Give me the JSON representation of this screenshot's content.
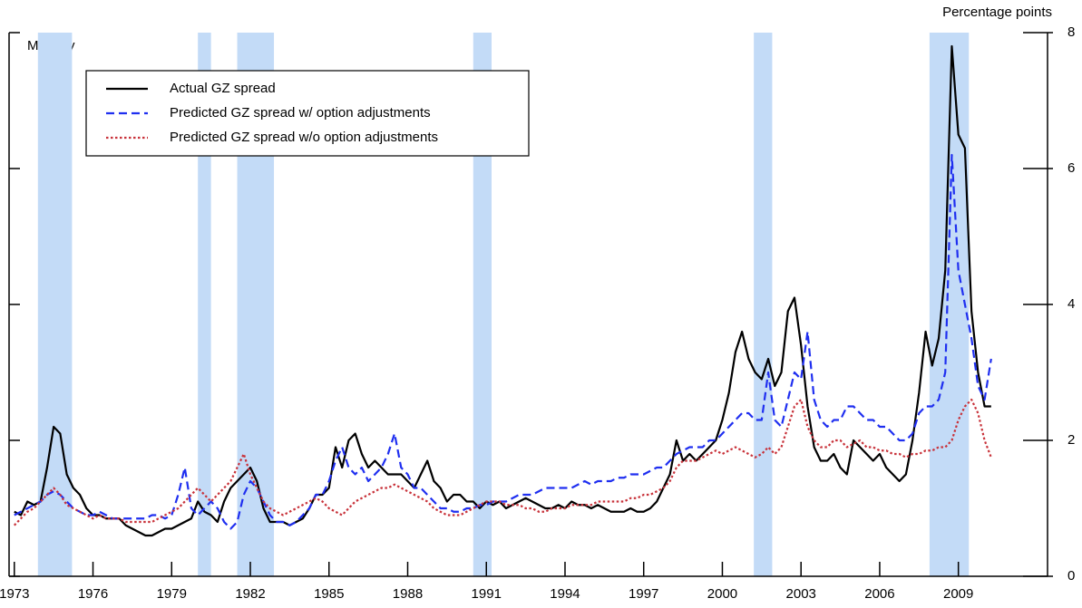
{
  "chart_data": {
    "type": "line",
    "y_axis_label": "Percentage points",
    "annotation": "Monthly",
    "xlim": [
      1972.8,
      2012.4
    ],
    "ylim": [
      0,
      8
    ],
    "xticks": [
      1973,
      1976,
      1979,
      1982,
      1985,
      1988,
      1991,
      1994,
      1997,
      2000,
      2003,
      2006,
      2009
    ],
    "yticks": [
      0,
      2,
      4,
      6,
      8
    ],
    "shade_color": "#c3dbf7",
    "shaded_periods": [
      [
        1973.9,
        1975.2
      ],
      [
        1980.0,
        1980.5
      ],
      [
        1981.5,
        1982.9
      ],
      [
        1990.5,
        1991.2
      ],
      [
        2001.2,
        2001.9
      ],
      [
        2007.9,
        2009.4
      ]
    ],
    "x": [
      1973,
      1973.25,
      1973.5,
      1973.75,
      1974,
      1974.25,
      1974.5,
      1974.75,
      1975,
      1975.25,
      1975.5,
      1975.75,
      1976,
      1976.25,
      1976.5,
      1976.75,
      1977,
      1977.25,
      1977.5,
      1977.75,
      1978,
      1978.25,
      1978.5,
      1978.75,
      1979,
      1979.25,
      1979.5,
      1979.75,
      1980,
      1980.25,
      1980.5,
      1980.75,
      1981,
      1981.25,
      1981.5,
      1981.75,
      1982,
      1982.25,
      1982.5,
      1982.75,
      1983,
      1983.25,
      1983.5,
      1983.75,
      1984,
      1984.25,
      1984.5,
      1984.75,
      1985,
      1985.25,
      1985.5,
      1985.75,
      1986,
      1986.25,
      1986.5,
      1986.75,
      1987,
      1987.25,
      1987.5,
      1987.75,
      1988,
      1988.25,
      1988.5,
      1988.75,
      1989,
      1989.25,
      1989.5,
      1989.75,
      1990,
      1990.25,
      1990.5,
      1990.75,
      1991,
      1991.25,
      1991.5,
      1991.75,
      1992,
      1992.25,
      1992.5,
      1992.75,
      1993,
      1993.25,
      1993.5,
      1993.75,
      1994,
      1994.25,
      1994.5,
      1994.75,
      1995,
      1995.25,
      1995.5,
      1995.75,
      1996,
      1996.25,
      1996.5,
      1996.75,
      1997,
      1997.25,
      1997.5,
      1997.75,
      1998,
      1998.25,
      1998.5,
      1998.75,
      1999,
      1999.25,
      1999.5,
      1999.75,
      2000,
      2000.25,
      2000.5,
      2000.75,
      2001,
      2001.25,
      2001.5,
      2001.75,
      2002,
      2002.25,
      2002.5,
      2002.75,
      2003,
      2003.25,
      2003.5,
      2003.75,
      2004,
      2004.25,
      2004.5,
      2004.75,
      2005,
      2005.25,
      2005.5,
      2005.75,
      2006,
      2006.25,
      2006.5,
      2006.75,
      2007,
      2007.25,
      2007.5,
      2007.75,
      2008,
      2008.25,
      2008.5,
      2008.75,
      2009,
      2009.25,
      2009.5,
      2009.75,
      2010,
      2010.25
    ],
    "series": [
      {
        "name": "Actual GZ spread",
        "color": "#000000",
        "style": "solid",
        "values": [
          0.95,
          0.9,
          1.1,
          1.05,
          1.1,
          1.6,
          2.2,
          2.1,
          1.5,
          1.3,
          1.2,
          1.0,
          0.9,
          0.9,
          0.85,
          0.85,
          0.85,
          0.75,
          0.7,
          0.65,
          0.6,
          0.6,
          0.65,
          0.7,
          0.7,
          0.75,
          0.8,
          0.85,
          1.1,
          0.95,
          0.9,
          0.8,
          1.1,
          1.3,
          1.4,
          1.5,
          1.6,
          1.4,
          1.0,
          0.8,
          0.8,
          0.8,
          0.75,
          0.8,
          0.85,
          1.0,
          1.2,
          1.2,
          1.3,
          1.9,
          1.6,
          2.0,
          2.1,
          1.8,
          1.6,
          1.7,
          1.6,
          1.5,
          1.5,
          1.5,
          1.4,
          1.3,
          1.5,
          1.7,
          1.4,
          1.3,
          1.1,
          1.2,
          1.2,
          1.1,
          1.1,
          1.0,
          1.1,
          1.05,
          1.1,
          1.0,
          1.05,
          1.1,
          1.15,
          1.1,
          1.05,
          1.0,
          1.0,
          1.05,
          1.0,
          1.1,
          1.05,
          1.05,
          1.0,
          1.05,
          1.0,
          0.95,
          0.95,
          0.95,
          1.0,
          0.95,
          0.95,
          1.0,
          1.1,
          1.3,
          1.5,
          2.0,
          1.7,
          1.8,
          1.7,
          1.8,
          1.9,
          2.0,
          2.3,
          2.7,
          3.3,
          3.6,
          3.2,
          3.0,
          2.9,
          3.2,
          2.8,
          3.0,
          3.9,
          4.1,
          3.4,
          2.5,
          1.9,
          1.7,
          1.7,
          1.8,
          1.6,
          1.5,
          2.0,
          1.9,
          1.8,
          1.7,
          1.8,
          1.6,
          1.5,
          1.4,
          1.5,
          2.0,
          2.7,
          3.6,
          3.1,
          3.5,
          4.5,
          7.8,
          6.5,
          6.3,
          3.9,
          3.0,
          2.5,
          2.5
        ]
      },
      {
        "name": "Predicted GZ spread w/ option adjustments",
        "color": "#1f2ff0",
        "style": "dashed",
        "values": [
          0.9,
          0.95,
          1.0,
          1.05,
          1.1,
          1.2,
          1.25,
          1.2,
          1.1,
          1.0,
          0.95,
          0.9,
          0.9,
          0.95,
          0.9,
          0.85,
          0.85,
          0.85,
          0.85,
          0.85,
          0.85,
          0.9,
          0.9,
          0.85,
          0.9,
          1.2,
          1.6,
          1.0,
          0.9,
          1.0,
          1.1,
          1.0,
          0.8,
          0.7,
          0.8,
          1.2,
          1.4,
          1.3,
          1.1,
          0.9,
          0.8,
          0.8,
          0.75,
          0.8,
          0.9,
          1.0,
          1.2,
          1.2,
          1.4,
          1.7,
          1.9,
          1.6,
          1.5,
          1.6,
          1.4,
          1.5,
          1.6,
          1.8,
          2.1,
          1.6,
          1.5,
          1.3,
          1.3,
          1.2,
          1.1,
          1.0,
          1.0,
          0.95,
          0.95,
          1.0,
          1.0,
          1.05,
          1.05,
          1.1,
          1.1,
          1.1,
          1.15,
          1.2,
          1.2,
          1.2,
          1.25,
          1.3,
          1.3,
          1.3,
          1.3,
          1.3,
          1.35,
          1.4,
          1.35,
          1.4,
          1.4,
          1.4,
          1.45,
          1.45,
          1.5,
          1.5,
          1.5,
          1.55,
          1.6,
          1.6,
          1.7,
          1.8,
          1.85,
          1.9,
          1.9,
          1.9,
          2.0,
          2.0,
          2.1,
          2.2,
          2.3,
          2.4,
          2.4,
          2.3,
          2.3,
          3.0,
          2.3,
          2.2,
          2.6,
          3.0,
          2.9,
          3.6,
          2.6,
          2.3,
          2.2,
          2.3,
          2.3,
          2.5,
          2.5,
          2.4,
          2.3,
          2.3,
          2.2,
          2.2,
          2.1,
          2.0,
          2.0,
          2.1,
          2.4,
          2.5,
          2.5,
          2.6,
          3.0,
          6.2,
          4.5,
          4.0,
          3.5,
          2.8,
          2.6,
          3.2
        ]
      },
      {
        "name": "Predicted GZ spread w/o option adjustments",
        "color": "#c8323a",
        "style": "dotted",
        "values": [
          0.75,
          0.85,
          0.95,
          1.0,
          1.1,
          1.2,
          1.3,
          1.2,
          1.05,
          1.0,
          0.95,
          0.9,
          0.85,
          0.9,
          0.85,
          0.85,
          0.85,
          0.8,
          0.8,
          0.8,
          0.8,
          0.8,
          0.85,
          0.9,
          0.95,
          1.0,
          1.1,
          1.2,
          1.3,
          1.2,
          1.1,
          1.2,
          1.3,
          1.4,
          1.6,
          1.8,
          1.5,
          1.3,
          1.1,
          1.0,
          0.95,
          0.9,
          0.95,
          1.0,
          1.05,
          1.1,
          1.15,
          1.1,
          1.0,
          0.95,
          0.9,
          1.0,
          1.1,
          1.15,
          1.2,
          1.25,
          1.3,
          1.3,
          1.35,
          1.3,
          1.25,
          1.2,
          1.15,
          1.1,
          1.0,
          0.95,
          0.9,
          0.9,
          0.9,
          0.95,
          1.0,
          1.05,
          1.1,
          1.1,
          1.1,
          1.05,
          1.05,
          1.05,
          1.0,
          1.0,
          0.95,
          0.95,
          1.0,
          1.0,
          1.0,
          1.05,
          1.05,
          1.05,
          1.05,
          1.1,
          1.1,
          1.1,
          1.1,
          1.1,
          1.15,
          1.15,
          1.2,
          1.2,
          1.25,
          1.3,
          1.4,
          1.6,
          1.7,
          1.7,
          1.7,
          1.75,
          1.8,
          1.85,
          1.8,
          1.85,
          1.9,
          1.85,
          1.8,
          1.75,
          1.8,
          1.9,
          1.8,
          1.9,
          2.2,
          2.5,
          2.6,
          2.2,
          2.0,
          1.9,
          1.9,
          2.0,
          2.0,
          1.9,
          1.95,
          2.0,
          1.9,
          1.9,
          1.85,
          1.85,
          1.8,
          1.8,
          1.75,
          1.8,
          1.8,
          1.85,
          1.85,
          1.9,
          1.9,
          2.0,
          2.3,
          2.5,
          2.6,
          2.4,
          2.0,
          1.75
        ]
      }
    ]
  }
}
